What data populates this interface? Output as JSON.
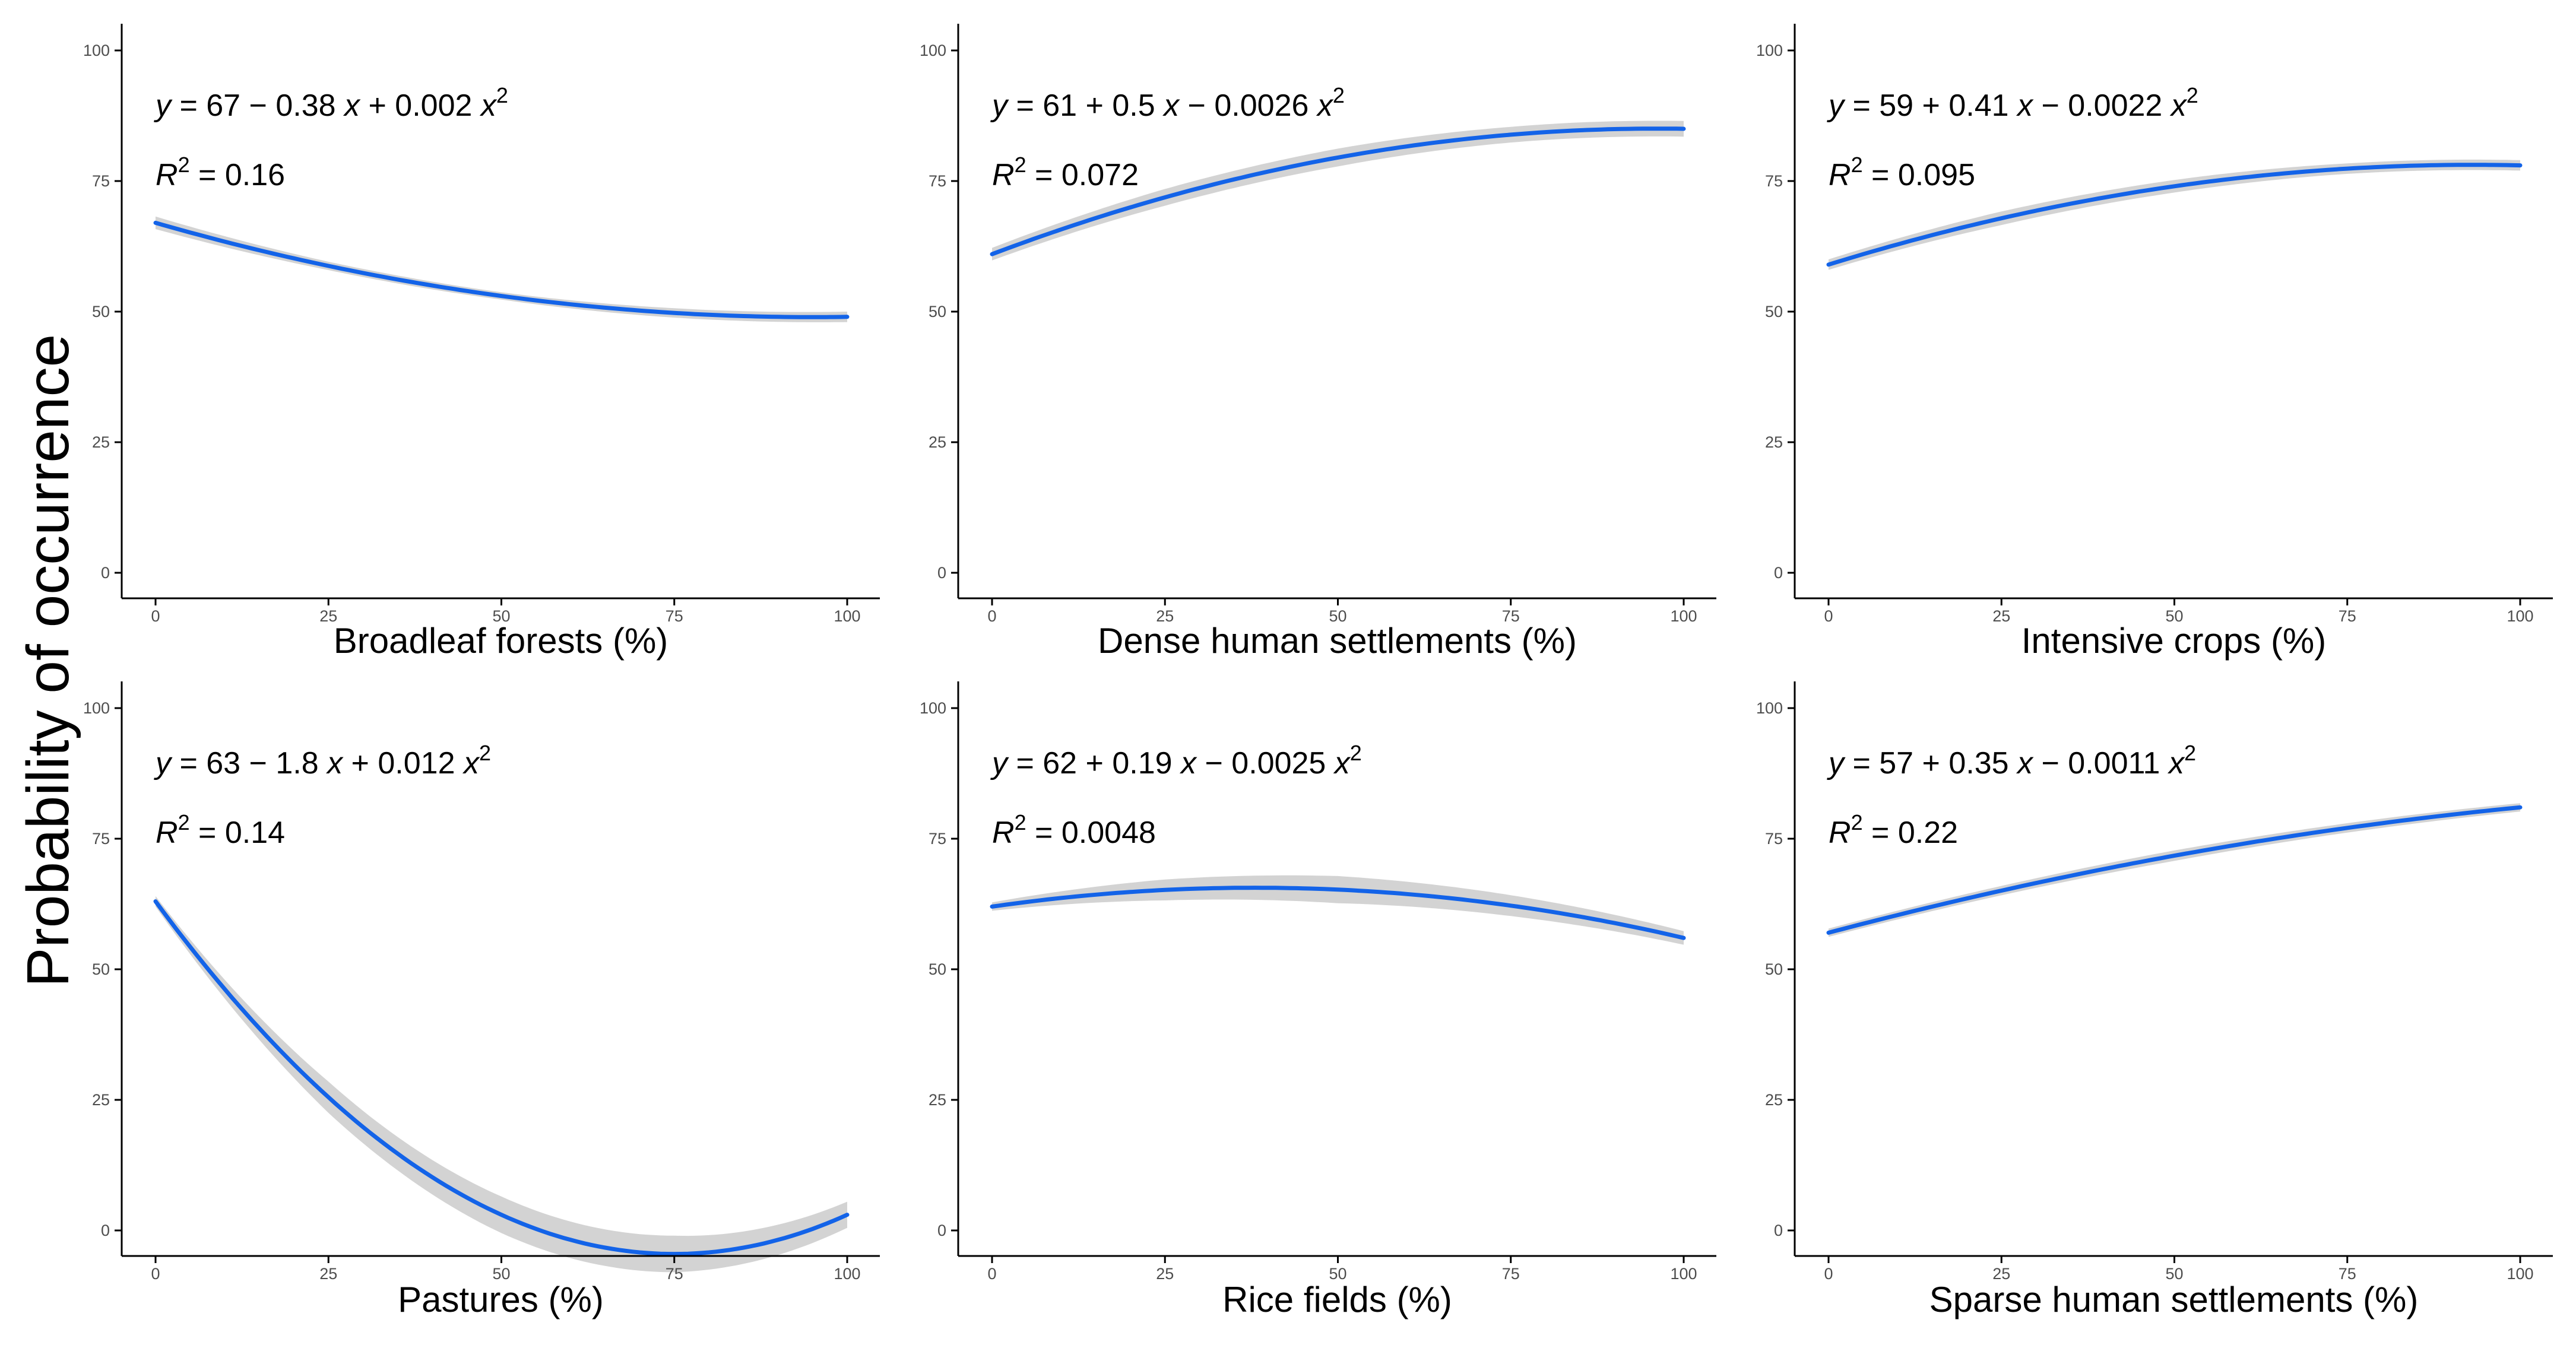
{
  "figure": {
    "ylabel": "Probability of occurrence",
    "colors": {
      "line": "#1363e8",
      "band": "#d3d3d3",
      "axis": "#000000",
      "tick_text": "#4d4d4d"
    }
  },
  "chart_data": [
    {
      "type": "line",
      "title": "",
      "xlabel": "Broadleaf forests (%)",
      "ylabel": "Probability of occurrence",
      "xlim": [
        0,
        100
      ],
      "ylim": [
        0,
        100
      ],
      "xticks": [
        "0",
        "25",
        "50",
        "75",
        "100"
      ],
      "yticks": [
        "0",
        "25",
        "50",
        "75",
        "100"
      ],
      "equation": {
        "lhs": "y",
        "terms": "67 − 0.38",
        "tail": "+ 0.002"
      },
      "r2": "0.16",
      "coefficients": {
        "a": 67,
        "b": -0.38,
        "c": 0.002
      },
      "ci_halfwidth": [
        1.2,
        0.8,
        0.7,
        0.9,
        1.0
      ],
      "grid": false
    },
    {
      "type": "line",
      "title": "",
      "xlabel": "Dense human settlements (%)",
      "ylabel": "Probability of occurrence",
      "xlim": [
        0,
        100
      ],
      "ylim": [
        0,
        100
      ],
      "xticks": [
        "0",
        "25",
        "50",
        "75",
        "100"
      ],
      "yticks": [
        "0",
        "25",
        "50",
        "75",
        "100"
      ],
      "equation": {
        "lhs": "y",
        "terms": "61 + 0.5",
        "tail": "− 0.0026"
      },
      "r2": "0.072",
      "coefficients": {
        "a": 61,
        "b": 0.5,
        "c": -0.0026
      },
      "ci_halfwidth": [
        1.2,
        1.6,
        1.7,
        1.5,
        1.5
      ],
      "grid": false
    },
    {
      "type": "line",
      "title": "",
      "xlabel": "Intensive crops (%)",
      "ylabel": "Probability of occurrence",
      "xlim": [
        0,
        100
      ],
      "ylim": [
        0,
        100
      ],
      "xticks": [
        "0",
        "25",
        "50",
        "75",
        "100"
      ],
      "yticks": [
        "0",
        "25",
        "50",
        "75",
        "100"
      ],
      "equation": {
        "lhs": "y",
        "terms": "59 + 0.41",
        "tail": "− 0.0022"
      },
      "r2": "0.095",
      "coefficients": {
        "a": 59,
        "b": 0.41,
        "c": -0.0022
      },
      "ci_halfwidth": [
        1.0,
        1.3,
        1.2,
        1.0,
        1.0
      ],
      "grid": false
    },
    {
      "type": "line",
      "title": "",
      "xlabel": "Pastures (%)",
      "ylabel": "Probability of occurrence",
      "xlim": [
        0,
        100
      ],
      "ylim": [
        0,
        100
      ],
      "xticks": [
        "0",
        "25",
        "50",
        "75",
        "100"
      ],
      "yticks": [
        "0",
        "25",
        "50",
        "75",
        "100"
      ],
      "equation": {
        "lhs": "y",
        "terms": "63 − 1.8",
        "tail": "+ 0.012"
      },
      "r2": "0.14",
      "coefficients": {
        "a": 63,
        "b": -1.8,
        "c": 0.012
      },
      "ci_halfwidth": [
        1.0,
        3.0,
        3.5,
        3.5,
        2.5
      ],
      "grid": false
    },
    {
      "type": "line",
      "title": "",
      "xlabel": "Rice fields (%)",
      "ylabel": "Probability of occurrence",
      "xlim": [
        0,
        100
      ],
      "ylim": [
        0,
        100
      ],
      "xticks": [
        "0",
        "25",
        "50",
        "75",
        "100"
      ],
      "yticks": [
        "0",
        "25",
        "50",
        "75",
        "100"
      ],
      "equation": {
        "lhs": "y",
        "terms": "62 + 0.19",
        "tail": "− 0.0025"
      },
      "r2": "0.0048",
      "coefficients": {
        "a": 62,
        "b": 0.19,
        "c": -0.0025
      },
      "ci_halfwidth": [
        0.8,
        2.0,
        2.6,
        2.0,
        1.3
      ],
      "grid": false
    },
    {
      "type": "line",
      "title": "",
      "xlabel": "Sparse human settlements (%)",
      "ylabel": "Probability of occurrence",
      "xlim": [
        0,
        100
      ],
      "ylim": [
        0,
        100
      ],
      "xticks": [
        "0",
        "25",
        "50",
        "75",
        "100"
      ],
      "yticks": [
        "0",
        "25",
        "50",
        "75",
        "100"
      ],
      "equation": {
        "lhs": "y",
        "terms": "57 + 0.35",
        "tail": "− 0.0011"
      },
      "r2": "0.22",
      "coefficients": {
        "a": 57,
        "b": 0.35,
        "c": -0.0011
      },
      "ci_halfwidth": [
        0.8,
        0.9,
        1.0,
        0.9,
        0.8
      ],
      "grid": false
    }
  ]
}
